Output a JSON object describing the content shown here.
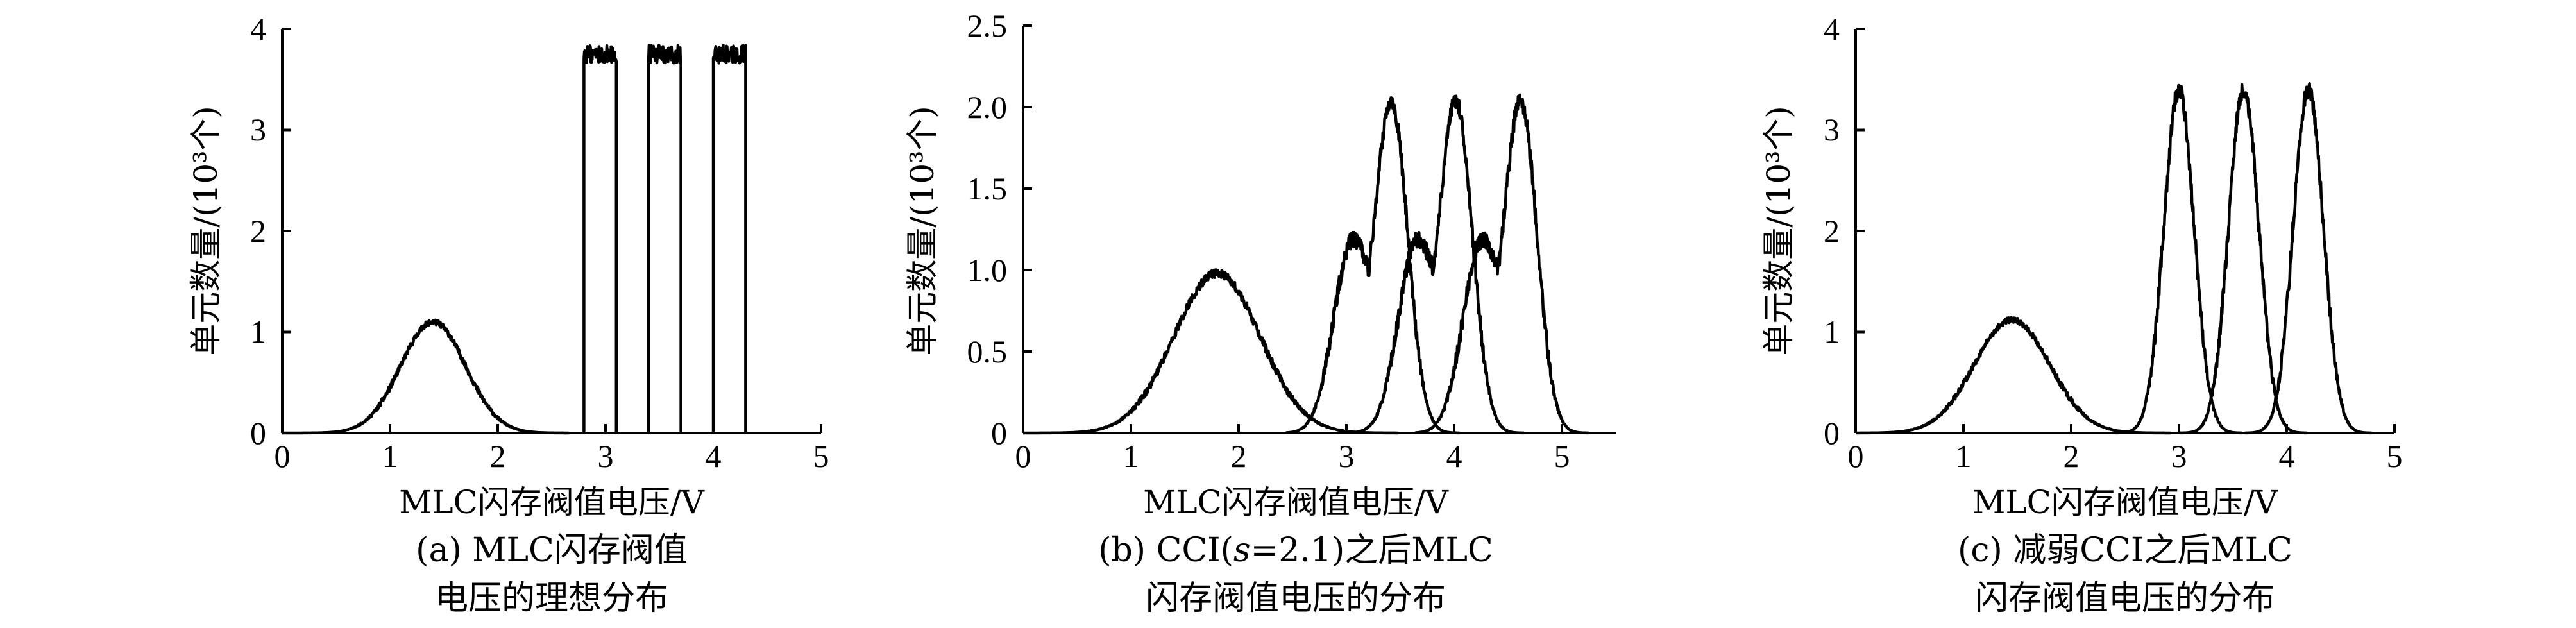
{
  "chart_data": [
    {
      "type": "line",
      "xlabel": "MLC闪存阀值电压/V",
      "ylabel": "单元数量/(10³个)",
      "xlim": [
        0,
        5
      ],
      "ylim": [
        0,
        4
      ],
      "x_ticks": [
        "0",
        "1",
        "2",
        "3",
        "4",
        "5"
      ],
      "y_ticks": [
        "0",
        "1",
        "2",
        "3",
        "4"
      ],
      "caption_lines": [
        "(a) MLC闪存阀值",
        "电压的理想分布"
      ],
      "series": [
        {
          "shape": "gaussian",
          "mean": 1.4,
          "sd": 0.3,
          "peak": 1.1
        },
        {
          "shape": "box",
          "start": 2.8,
          "end": 3.1,
          "level": 3.75
        },
        {
          "shape": "box",
          "start": 3.4,
          "end": 3.7,
          "level": 3.75
        },
        {
          "shape": "box",
          "start": 4.0,
          "end": 4.3,
          "level": 3.75
        }
      ]
    },
    {
      "type": "line",
      "xlabel": "MLC闪存阀值电压/V",
      "ylabel": "单元数量/(10³个)",
      "xlim": [
        0,
        5.5
      ],
      "ylim": [
        0,
        2.5
      ],
      "x_ticks": [
        "0",
        "1",
        "2",
        "3",
        "4",
        "5"
      ],
      "y_ticks": [
        "0",
        "0.5",
        "1.0",
        "1.5",
        "2.0",
        "2.5"
      ],
      "caption_lines": [
        "(b) CCI(s=2.1)之后MLC",
        "闪存阀值电压的分布"
      ],
      "series": [
        {
          "shape": "gaussian",
          "mean": 1.8,
          "sd": 0.4,
          "peak": 0.98
        },
        {
          "shape": "shoulder",
          "main_mean": 3.42,
          "main_sd": 0.15,
          "main_peak": 2.0,
          "shoulder_mean": 3.05,
          "shoulder_sd": 0.17,
          "shoulder_peak": 1.15
        },
        {
          "shape": "shoulder",
          "main_mean": 4.02,
          "main_sd": 0.15,
          "main_peak": 2.0,
          "shoulder_mean": 3.65,
          "shoulder_sd": 0.17,
          "shoulder_peak": 1.15
        },
        {
          "shape": "shoulder",
          "main_mean": 4.62,
          "main_sd": 0.15,
          "main_peak": 2.0,
          "shoulder_mean": 4.25,
          "shoulder_sd": 0.17,
          "shoulder_peak": 1.15
        }
      ]
    },
    {
      "type": "line",
      "xlabel": "MLC闪存阀值电压/V",
      "ylabel": "单元数量/(10³个)",
      "xlim": [
        0,
        5
      ],
      "ylim": [
        0,
        4
      ],
      "x_ticks": [
        "0",
        "1",
        "2",
        "3",
        "4",
        "5"
      ],
      "y_ticks": [
        "0",
        "1",
        "2",
        "3",
        "4"
      ],
      "caption_lines": [
        "(c) 减弱CCI之后MLC",
        "闪存阀值电压的分布"
      ],
      "series": [
        {
          "shape": "gaussian",
          "mean": 1.45,
          "sd": 0.35,
          "peak": 1.12
        },
        {
          "shape": "gaussian",
          "mean": 3.0,
          "sd": 0.14,
          "peak": 3.4
        },
        {
          "shape": "gaussian",
          "mean": 3.6,
          "sd": 0.14,
          "peak": 3.4
        },
        {
          "shape": "gaussian",
          "mean": 4.2,
          "sd": 0.14,
          "peak": 3.4
        }
      ]
    }
  ]
}
